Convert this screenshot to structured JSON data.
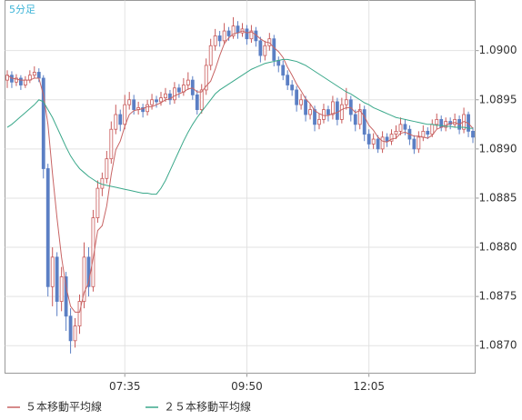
{
  "chart_data": {
    "type": "candlestick",
    "title": "5分足",
    "categories": [
      null,
      null,
      null,
      null,
      null,
      null,
      null,
      null,
      null,
      null,
      null,
      null,
      null,
      null,
      null,
      null,
      null,
      null,
      null,
      null,
      null,
      null,
      null,
      null,
      null,
      null,
      "07:35",
      null,
      null,
      null,
      null,
      null,
      null,
      null,
      null,
      null,
      null,
      null,
      null,
      null,
      null,
      null,
      null,
      null,
      null,
      null,
      null,
      null,
      null,
      null,
      null,
      null,
      null,
      "09:50",
      null,
      null,
      null,
      null,
      null,
      null,
      null,
      null,
      null,
      null,
      null,
      null,
      null,
      null,
      null,
      null,
      null,
      null,
      null,
      null,
      null,
      null,
      null,
      null,
      null,
      null,
      "12:05",
      null,
      null,
      null,
      null,
      null,
      null,
      null,
      null,
      null,
      null,
      null,
      null,
      null,
      null,
      null,
      null,
      null,
      null,
      null,
      null,
      null,
      null,
      null
    ],
    "ohlc": [
      [
        1.0897,
        1.0898,
        1.08962,
        1.08975
      ],
      [
        1.08975,
        1.08979,
        1.08962,
        1.08968
      ],
      [
        1.08968,
        1.08976,
        1.08964,
        1.08972
      ],
      [
        1.08972,
        1.08975,
        1.0896,
        1.08965
      ],
      [
        1.08965,
        1.08974,
        1.08962,
        1.0897
      ],
      [
        1.0897,
        1.0898,
        1.08967,
        1.08975
      ],
      [
        1.08975,
        1.08984,
        1.08972,
        1.08978
      ],
      [
        1.08978,
        1.08982,
        1.08968,
        1.08972
      ],
      [
        1.08972,
        1.08975,
        1.0887,
        1.0888
      ],
      [
        1.0888,
        1.08885,
        1.0875,
        1.0876
      ],
      [
        1.0876,
        1.088,
        1.0874,
        1.0879
      ],
      [
        1.0879,
        1.08795,
        1.0873,
        1.08745
      ],
      [
        1.08745,
        1.0878,
        1.08735,
        1.0877
      ],
      [
        1.0877,
        1.08775,
        1.08715,
        1.0873
      ],
      [
        1.0873,
        1.08738,
        1.08692,
        1.08705
      ],
      [
        1.08705,
        1.08728,
        1.08698,
        1.0872
      ],
      [
        1.0872,
        1.08752,
        1.08712,
        1.08745
      ],
      [
        1.08745,
        1.08805,
        1.08738,
        1.0879
      ],
      [
        1.0879,
        1.088,
        1.0875,
        1.0876
      ],
      [
        1.0876,
        1.08838,
        1.08755,
        1.0883
      ],
      [
        1.0883,
        1.08868,
        1.08825,
        1.0886
      ],
      [
        1.0886,
        1.08876,
        1.08852,
        1.0887
      ],
      [
        1.0887,
        1.08898,
        1.08865,
        1.0889
      ],
      [
        1.0889,
        1.08928,
        1.08885,
        1.0892
      ],
      [
        1.0892,
        1.08945,
        1.08915,
        1.08935
      ],
      [
        1.08935,
        1.0894,
        1.08918,
        1.08925
      ],
      [
        1.08925,
        1.08955,
        1.0892,
        1.08945
      ],
      [
        1.08945,
        1.08958,
        1.0894,
        1.0895
      ],
      [
        1.0895,
        1.08955,
        1.08935,
        1.0894
      ],
      [
        1.0894,
        1.08948,
        1.08935,
        1.08942
      ],
      [
        1.08942,
        1.08946,
        1.08932,
        1.08938
      ],
      [
        1.08938,
        1.0895,
        1.08934,
        1.08945
      ],
      [
        1.08945,
        1.08956,
        1.0894,
        1.0895
      ],
      [
        1.0895,
        1.08954,
        1.08942,
        1.08948
      ],
      [
        1.08948,
        1.08958,
        1.08944,
        1.08952
      ],
      [
        1.08952,
        1.08962,
        1.08948,
        1.08956
      ],
      [
        1.08956,
        1.0896,
        1.08945,
        1.0895
      ],
      [
        1.0895,
        1.08968,
        1.08946,
        1.08962
      ],
      [
        1.08962,
        1.08966,
        1.08952,
        1.08958
      ],
      [
        1.08958,
        1.08972,
        1.08954,
        1.08965
      ],
      [
        1.08965,
        1.08978,
        1.0896,
        1.0897
      ],
      [
        1.0897,
        1.08974,
        1.0895,
        1.08955
      ],
      [
        1.08955,
        1.0896,
        1.08935,
        1.0894
      ],
      [
        1.0894,
        1.08966,
        1.08936,
        1.0896
      ],
      [
        1.0896,
        1.08992,
        1.08955,
        1.08985
      ],
      [
        1.08985,
        1.09012,
        1.0898,
        1.09005
      ],
      [
        1.09005,
        1.09022,
        1.09,
        1.09015
      ],
      [
        1.09015,
        1.0902,
        1.09004,
        1.0901
      ],
      [
        1.0901,
        1.09028,
        1.09006,
        1.0902
      ],
      [
        1.0902,
        1.09024,
        1.0901,
        1.09015
      ],
      [
        1.09015,
        1.09034,
        1.09012,
        1.09025
      ],
      [
        1.09025,
        1.0903,
        1.09012,
        1.09018
      ],
      [
        1.09018,
        1.09028,
        1.09014,
        1.09022
      ],
      [
        1.09022,
        1.09026,
        1.09006,
        1.09012
      ],
      [
        1.09012,
        1.09026,
        1.09008,
        1.0902
      ],
      [
        1.0902,
        1.09024,
        1.09004,
        1.0901
      ],
      [
        1.0901,
        1.09014,
        1.08988,
        1.08995
      ],
      [
        1.08995,
        1.0901,
        1.0899,
        1.09005
      ],
      [
        1.09005,
        1.09018,
        1.09,
        1.09012
      ],
      [
        1.09012,
        1.09016,
        1.08984,
        1.0899
      ],
      [
        1.0899,
        1.08994,
        1.08978,
        1.08985
      ],
      [
        1.08985,
        1.0899,
        1.0897,
        1.08975
      ],
      [
        1.08975,
        1.0898,
        1.0896,
        1.08965
      ],
      [
        1.08965,
        1.0897,
        1.08954,
        1.0896
      ],
      [
        1.0896,
        1.08964,
        1.08938,
        1.08945
      ],
      [
        1.08945,
        1.08956,
        1.0894,
        1.0895
      ],
      [
        1.0895,
        1.08954,
        1.08928,
        1.08935
      ],
      [
        1.08935,
        1.08946,
        1.0893,
        1.0894
      ],
      [
        1.0894,
        1.08944,
        1.08918,
        1.08925
      ],
      [
        1.08925,
        1.08936,
        1.0892,
        1.0893
      ],
      [
        1.0893,
        1.08946,
        1.08926,
        1.0894
      ],
      [
        1.0894,
        1.08944,
        1.08928,
        1.08935
      ],
      [
        1.08935,
        1.08954,
        1.0893,
        1.08948
      ],
      [
        1.08948,
        1.08952,
        1.08924,
        1.0893
      ],
      [
        1.0893,
        1.08952,
        1.08926,
        1.08945
      ],
      [
        1.08945,
        1.08962,
        1.0894,
        1.0895
      ],
      [
        1.0895,
        1.08954,
        1.08928,
        1.08935
      ],
      [
        1.08935,
        1.0894,
        1.08918,
        1.08925
      ],
      [
        1.08925,
        1.08946,
        1.0892,
        1.0894
      ],
      [
        1.0894,
        1.08944,
        1.08908,
        1.08915
      ],
      [
        1.08915,
        1.0892,
        1.089,
        1.08905
      ],
      [
        1.08905,
        1.08916,
        1.089,
        1.0891
      ],
      [
        1.0891,
        1.08914,
        1.08896,
        1.089
      ],
      [
        1.089,
        1.08918,
        1.08896,
        1.08912
      ],
      [
        1.08912,
        1.08916,
        1.08902,
        1.08908
      ],
      [
        1.08908,
        1.0892,
        1.08904,
        1.08915
      ],
      [
        1.08915,
        1.08924,
        1.0891,
        1.08918
      ],
      [
        1.08918,
        1.08932,
        1.08914,
        1.08925
      ],
      [
        1.08925,
        1.0893,
        1.08914,
        1.0892
      ],
      [
        1.0892,
        1.08924,
        1.08904,
        1.0891
      ],
      [
        1.0891,
        1.08914,
        1.08895,
        1.089
      ],
      [
        1.089,
        1.08918,
        1.08896,
        1.08912
      ],
      [
        1.08912,
        1.08924,
        1.08908,
        1.08918
      ],
      [
        1.08918,
        1.08922,
        1.0891,
        1.08915
      ],
      [
        1.08915,
        1.0893,
        1.08912,
        1.08925
      ],
      [
        1.08925,
        1.08936,
        1.0892,
        1.0893
      ],
      [
        1.0893,
        1.08934,
        1.08918,
        1.08922
      ],
      [
        1.08922,
        1.08932,
        1.08918,
        1.08928
      ],
      [
        1.08928,
        1.08932,
        1.0892,
        1.08925
      ],
      [
        1.08925,
        1.08936,
        1.08922,
        1.0893
      ],
      [
        1.0893,
        1.08934,
        1.08915,
        1.0892
      ],
      [
        1.0892,
        1.08942,
        1.08916,
        1.08935
      ],
      [
        1.08935,
        1.08938,
        1.08912,
        1.08918
      ],
      [
        1.08918,
        1.08922,
        1.08906,
        1.08912
      ]
    ],
    "up_color": "#c85a5a",
    "down_color": "#5b7fc4",
    "series": [
      {
        "name": "５本移動平均線",
        "color": "#c86464",
        "values": [
          1.08975,
          1.08972,
          1.08971,
          1.0897,
          1.0897,
          1.0897,
          1.08972,
          1.08972,
          1.08955,
          1.08925,
          1.08875,
          1.0883,
          1.0879,
          1.0876,
          1.0874,
          1.08734,
          1.08734,
          1.08754,
          1.08764,
          1.08789,
          1.08817,
          1.08822,
          1.08842,
          1.08874,
          1.08899,
          1.08908,
          1.08923,
          1.08935,
          1.08939,
          1.0894,
          1.08941,
          1.08943,
          1.08943,
          1.08945,
          1.08947,
          1.0895,
          1.08951,
          1.08954,
          1.08956,
          1.08958,
          1.08961,
          1.08962,
          1.08958,
          1.08958,
          1.08964,
          1.08969,
          1.08981,
          1.08995,
          1.09007,
          1.09013,
          1.09017,
          1.09018,
          1.0902,
          1.09018,
          1.09019,
          1.09016,
          1.09012,
          1.09009,
          1.09008,
          1.09003,
          1.08999,
          1.08993,
          1.08983,
          1.08975,
          1.08966,
          1.08959,
          1.08951,
          1.08946,
          1.08939,
          1.08936,
          1.08934,
          1.08934,
          1.08936,
          1.08937,
          1.0894,
          1.08942,
          1.08942,
          1.08937,
          1.08939,
          1.08933,
          1.08924,
          1.08919,
          1.08912,
          1.08908,
          1.08907,
          1.0891,
          1.08911,
          1.08916,
          1.08917,
          1.08915,
          1.08913,
          1.08913,
          1.08912,
          1.08911,
          1.08914,
          1.0892,
          1.08922,
          1.08924,
          1.08926,
          1.08927,
          1.08925,
          1.08928,
          1.08926,
          1.08921
        ]
      },
      {
        "name": "２５本移動平均線",
        "color": "#3aa88a",
        "values": [
          1.08922,
          1.08925,
          1.08929,
          1.08933,
          1.08937,
          1.08941,
          1.08945,
          1.0895,
          1.08948,
          1.0894,
          1.08932,
          1.08922,
          1.08912,
          1.08902,
          1.08893,
          1.08886,
          1.0888,
          1.08876,
          1.08872,
          1.08869,
          1.08866,
          1.08864,
          1.08863,
          1.08862,
          1.08861,
          1.0886,
          1.08859,
          1.08858,
          1.08857,
          1.08856,
          1.08855,
          1.08855,
          1.08854,
          1.08854,
          1.0886,
          1.08868,
          1.08878,
          1.08888,
          1.08898,
          1.08908,
          1.08917,
          1.08925,
          1.08932,
          1.08938,
          1.08944,
          1.0895,
          1.08956,
          1.0896,
          1.08963,
          1.08966,
          1.08969,
          1.08972,
          1.08975,
          1.08978,
          1.08981,
          1.08983,
          1.08985,
          1.08987,
          1.08988,
          1.08989,
          1.0899,
          1.08991,
          1.08991,
          1.0899,
          1.08989,
          1.08987,
          1.08985,
          1.08982,
          1.08979,
          1.08976,
          1.08973,
          1.0897,
          1.08967,
          1.08964,
          1.08961,
          1.08958,
          1.08956,
          1.08953,
          1.0895,
          1.08947,
          1.08945,
          1.08942,
          1.0894,
          1.08938,
          1.08936,
          1.08934,
          1.08932,
          1.08931,
          1.0893,
          1.08929,
          1.08928,
          1.08927,
          1.08926,
          1.08925,
          1.08925,
          1.08924,
          1.08924,
          1.08923,
          1.08923,
          1.08922,
          1.08922,
          1.08922,
          1.08921,
          1.08921
        ]
      }
    ],
    "ylim": [
      1.08672,
      1.09051
    ],
    "yticks": [
      {
        "value": 1.087,
        "label": "1.0870"
      },
      {
        "value": 1.0875,
        "label": "1.0875"
      },
      {
        "value": 1.088,
        "label": "1.0880"
      },
      {
        "value": 1.0885,
        "label": "1.0885"
      },
      {
        "value": 1.089,
        "label": "1.0890"
      },
      {
        "value": 1.0895,
        "label": "1.0895"
      },
      {
        "value": 1.09,
        "label": "1.0900"
      }
    ],
    "grid": true,
    "legend": "bottom-left"
  }
}
